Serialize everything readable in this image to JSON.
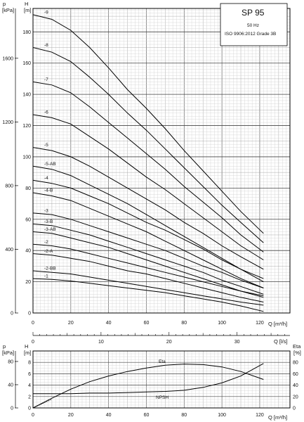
{
  "title_box": {
    "model": "SP 95",
    "frequency": "50 Hz",
    "standard": "ISO 9906:2012 Grade 3B"
  },
  "top_chart": {
    "left_axis_kpa": {
      "unit_line1": "p",
      "unit_line2": "[kPa]",
      "ticks": [
        0,
        400,
        800,
        1200,
        1600
      ]
    },
    "left_axis_m": {
      "unit_line1": "H",
      "unit_line2": "[m]",
      "ticks": [
        0,
        20,
        40,
        60,
        80,
        100,
        120,
        140,
        160,
        180
      ]
    },
    "x_axis_m3h": {
      "label": "Q [m³/h]",
      "ticks": [
        0,
        20,
        40,
        60,
        80,
        100,
        120
      ]
    },
    "x_axis_ls": {
      "label": "Q [l/s]",
      "ticks": [
        0,
        10,
        20,
        30
      ]
    }
  },
  "bottom_chart": {
    "left_axis_kpa": {
      "unit_line1": "p",
      "unit_line2": "[kPa]",
      "ticks": [
        0,
        40,
        80
      ]
    },
    "left_axis_m": {
      "unit_line1": "H",
      "unit_line2": "[m]",
      "ticks": [
        0,
        2,
        4,
        6,
        8
      ]
    },
    "right_axis_eta": {
      "unit_line1": "Eta",
      "unit_line2": "[%]",
      "ticks": [
        0,
        20,
        40,
        60,
        80
      ]
    },
    "x_axis_m3h": {
      "label": "Q [m³/h]",
      "ticks": [
        0,
        20,
        40,
        60,
        80,
        100,
        120
      ]
    },
    "eta_label": "Eta",
    "npsh_label": "NPSH"
  },
  "chart_data": [
    {
      "type": "line",
      "title": "SP 95",
      "xlabel": "Q [m³/h]",
      "ylabel": "H [m]",
      "xlim": [
        0,
        136
      ],
      "ylim": [
        0,
        195
      ],
      "grid": true,
      "series": [
        {
          "name": "-9",
          "x": [
            0,
            10,
            20,
            30,
            40,
            50,
            60,
            70,
            80,
            90,
            100,
            110,
            122
          ],
          "y": [
            191,
            188,
            181,
            170,
            157,
            143,
            131,
            118,
            104,
            91,
            78,
            65,
            51
          ]
        },
        {
          "name": "-8",
          "x": [
            0,
            10,
            20,
            30,
            40,
            50,
            60,
            70,
            80,
            90,
            100,
            110,
            122
          ],
          "y": [
            170,
            167,
            161,
            151,
            140,
            128,
            117,
            105,
            93,
            81,
            69,
            58,
            45
          ]
        },
        {
          "name": "-7",
          "x": [
            0,
            10,
            20,
            30,
            40,
            50,
            60,
            70,
            80,
            90,
            100,
            110,
            122
          ],
          "y": [
            148,
            146,
            141,
            132,
            122,
            112,
            102,
            92,
            81,
            71,
            61,
            50,
            39
          ]
        },
        {
          "name": "-6",
          "x": [
            0,
            10,
            20,
            30,
            40,
            50,
            60,
            70,
            80,
            90,
            100,
            110,
            122
          ],
          "y": [
            127,
            125,
            121,
            113,
            105,
            96,
            87,
            79,
            70,
            61,
            52,
            43,
            34
          ]
        },
        {
          "name": "-5",
          "x": [
            0,
            10,
            20,
            30,
            40,
            50,
            60,
            70,
            80,
            90,
            100,
            110,
            122
          ],
          "y": [
            106,
            104,
            100,
            94,
            87,
            80,
            73,
            66,
            58,
            51,
            43,
            36,
            28
          ]
        },
        {
          "name": "-5-AB",
          "x": [
            0,
            10,
            20,
            30,
            40,
            50,
            60,
            70,
            80,
            90,
            100,
            110,
            122
          ],
          "y": [
            94,
            92,
            88,
            82,
            76,
            70,
            63,
            56,
            49,
            42,
            35,
            28,
            20
          ]
        },
        {
          "name": "-4",
          "x": [
            0,
            10,
            20,
            30,
            40,
            50,
            60,
            70,
            80,
            90,
            100,
            110,
            122
          ],
          "y": [
            85,
            83,
            80,
            75,
            70,
            64,
            58,
            53,
            47,
            41,
            34,
            28,
            22
          ]
        },
        {
          "name": "-4-B",
          "x": [
            0,
            10,
            20,
            30,
            40,
            50,
            60,
            70,
            80,
            90,
            100,
            110,
            122
          ],
          "y": [
            77,
            75,
            72,
            67,
            62,
            57,
            52,
            46,
            40,
            34,
            28,
            22,
            16
          ]
        },
        {
          "name": "-3",
          "x": [
            0,
            10,
            20,
            30,
            40,
            50,
            60,
            70,
            80,
            90,
            100,
            110,
            122
          ],
          "y": [
            64,
            63,
            60,
            56,
            52,
            48,
            44,
            40,
            35,
            30,
            26,
            21,
            16
          ]
        },
        {
          "name": "-3-B",
          "x": [
            0,
            10,
            20,
            30,
            40,
            50,
            60,
            70,
            80,
            90,
            100,
            110,
            122
          ],
          "y": [
            57,
            56,
            53,
            50,
            46,
            42,
            38,
            34,
            30,
            26,
            21,
            17,
            12
          ]
        },
        {
          "name": "-3-AB",
          "x": [
            0,
            10,
            20,
            30,
            40,
            50,
            60,
            70,
            80,
            90,
            100,
            110,
            122
          ],
          "y": [
            52,
            51,
            48,
            45,
            42,
            38,
            34,
            30,
            26,
            22,
            18,
            14,
            10
          ]
        },
        {
          "name": "-2",
          "x": [
            0,
            10,
            20,
            30,
            40,
            50,
            60,
            70,
            80,
            90,
            100,
            110,
            122
          ],
          "y": [
            44,
            43,
            41,
            38,
            35,
            32,
            29,
            26,
            23,
            20,
            17,
            14,
            11
          ]
        },
        {
          "name": "-2-A",
          "x": [
            0,
            10,
            20,
            30,
            40,
            50,
            60,
            70,
            80,
            90,
            100,
            110,
            122
          ],
          "y": [
            38,
            37,
            35,
            33,
            30,
            27,
            25,
            22,
            19,
            16,
            13,
            10,
            7
          ]
        },
        {
          "name": "-2-BB",
          "x": [
            0,
            10,
            20,
            30,
            40,
            50,
            60,
            70,
            80,
            90,
            100,
            110,
            122
          ],
          "y": [
            27,
            26,
            25,
            23,
            21,
            19,
            17,
            15,
            13,
            11,
            9,
            7,
            5
          ]
        },
        {
          "name": "-1",
          "x": [
            0,
            10,
            20,
            30,
            40,
            50,
            60,
            70,
            80,
            90,
            100,
            110,
            122
          ],
          "y": [
            22,
            21.5,
            20.5,
            19,
            17.5,
            16,
            14.5,
            13,
            11,
            9,
            7,
            4.5,
            1
          ]
        }
      ]
    },
    {
      "type": "line",
      "xlabel": "Q [m³/h]",
      "ylabel": "H [m]",
      "xlim": [
        0,
        136
      ],
      "ylim": [
        0,
        10
      ],
      "grid": true,
      "series": [
        {
          "name": "Eta",
          "axis": "right",
          "unit": "%",
          "x": [
            0,
            10,
            20,
            30,
            40,
            50,
            60,
            70,
            80,
            90,
            100,
            110,
            122
          ],
          "y": [
            0,
            17,
            33,
            46,
            56,
            64,
            70,
            75,
            77,
            76,
            72,
            64,
            50
          ]
        },
        {
          "name": "NPSH",
          "axis": "left",
          "unit": "m",
          "x": [
            0,
            10,
            20,
            30,
            40,
            50,
            60,
            70,
            80,
            90,
            100,
            110,
            122
          ],
          "y": [
            2.5,
            2.5,
            2.5,
            2.6,
            2.6,
            2.7,
            2.8,
            2.9,
            3.1,
            3.6,
            4.4,
            5.6,
            7.8
          ]
        }
      ]
    }
  ]
}
